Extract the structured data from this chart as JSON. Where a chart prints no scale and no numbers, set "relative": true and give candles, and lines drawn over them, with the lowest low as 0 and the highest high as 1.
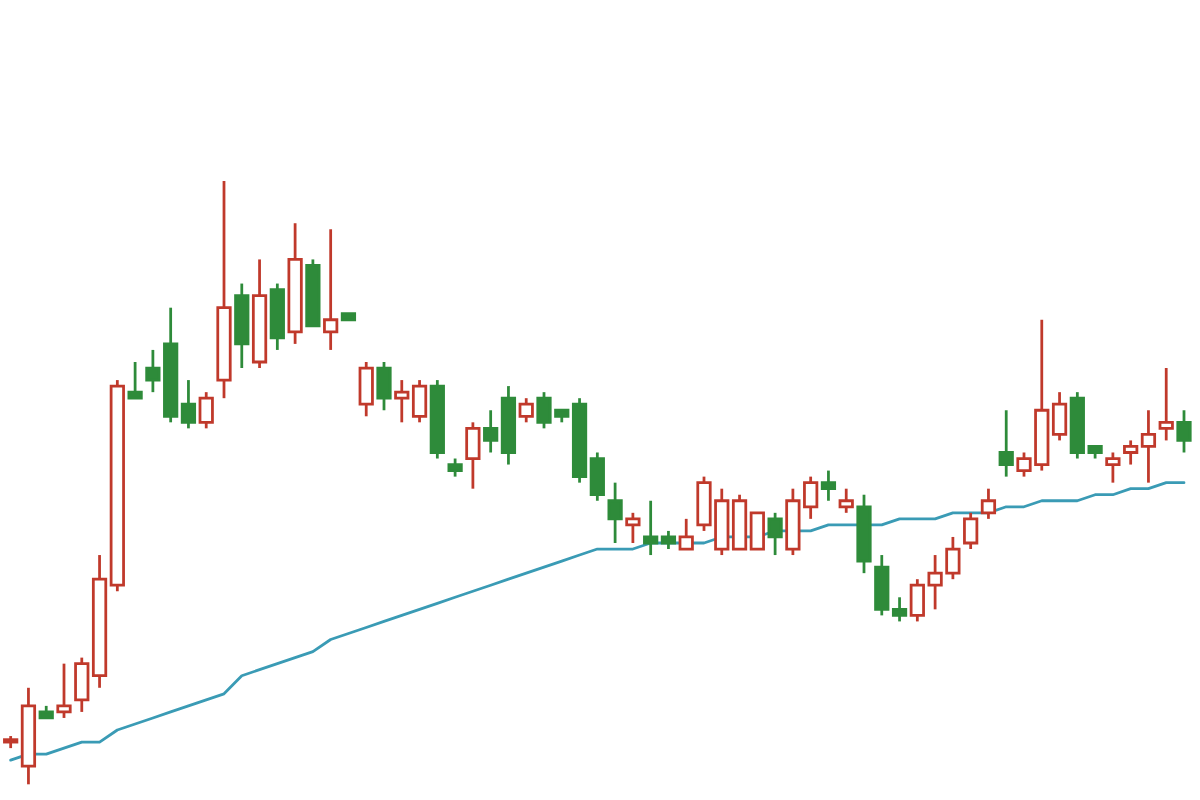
{
  "chart_data": {
    "type": "candlestick",
    "relative": true,
    "categories": [
      null,
      null,
      null,
      null,
      null,
      null,
      null,
      null,
      null,
      null,
      null,
      null,
      null,
      null,
      null,
      null,
      null,
      null,
      null,
      null,
      null,
      null,
      null,
      null,
      null,
      null,
      null,
      null,
      null,
      null,
      null,
      null,
      null,
      null,
      null,
      null,
      null,
      null,
      null,
      null,
      null,
      null,
      null,
      null,
      null,
      null,
      null,
      null,
      null,
      null,
      null,
      null,
      null,
      null,
      null,
      null,
      null,
      null,
      null,
      null,
      null,
      null,
      null,
      null,
      null,
      null,
      null
    ],
    "ohlc": [
      [
        0.07,
        0.08,
        0.06,
        0.07
      ],
      [
        0.03,
        0.16,
        0,
        0.13
      ],
      [
        0.12,
        0.13,
        0.11,
        0.11
      ],
      [
        0.12,
        0.2,
        0.11,
        0.13
      ],
      [
        0.14,
        0.21,
        0.12,
        0.2
      ],
      [
        0.18,
        0.38,
        0.16,
        0.34
      ],
      [
        0.33,
        0.67,
        0.32,
        0.66
      ],
      [
        0.65,
        0.7,
        0.64,
        0.64
      ],
      [
        0.69,
        0.72,
        0.65,
        0.67
      ],
      [
        0.73,
        0.79,
        0.6,
        0.61
      ],
      [
        0.63,
        0.67,
        0.59,
        0.6
      ],
      [
        0.6,
        0.65,
        0.59,
        0.64
      ],
      [
        0.67,
        1.0,
        0.64,
        0.79
      ],
      [
        0.81,
        0.83,
        0.69,
        0.73
      ],
      [
        0.7,
        0.87,
        0.69,
        0.81
      ],
      [
        0.82,
        0.83,
        0.72,
        0.74
      ],
      [
        0.75,
        0.93,
        0.73,
        0.87
      ],
      [
        0.86,
        0.87,
        0.76,
        0.76
      ],
      [
        0.75,
        0.92,
        0.72,
        0.77
      ],
      [
        0.78,
        0.78,
        0.77,
        0.77
      ],
      [
        0.63,
        0.7,
        0.61,
        0.69
      ],
      [
        0.69,
        0.7,
        0.62,
        0.64
      ],
      [
        0.64,
        0.67,
        0.6,
        0.65
      ],
      [
        0.61,
        0.67,
        0.6,
        0.66
      ],
      [
        0.66,
        0.67,
        0.54,
        0.55
      ],
      [
        0.53,
        0.54,
        0.51,
        0.52
      ],
      [
        0.54,
        0.6,
        0.49,
        0.59
      ],
      [
        0.59,
        0.62,
        0.55,
        0.57
      ],
      [
        0.64,
        0.66,
        0.53,
        0.55
      ],
      [
        0.61,
        0.64,
        0.6,
        0.63
      ],
      [
        0.64,
        0.65,
        0.59,
        0.6
      ],
      [
        0.62,
        0.62,
        0.6,
        0.61
      ],
      [
        0.63,
        0.64,
        0.5,
        0.51
      ],
      [
        0.54,
        0.55,
        0.47,
        0.48
      ],
      [
        0.47,
        0.5,
        0.4,
        0.44
      ],
      [
        0.43,
        0.45,
        0.4,
        0.44
      ],
      [
        0.41,
        0.47,
        0.38,
        0.4
      ],
      [
        0.41,
        0.42,
        0.39,
        0.4
      ],
      [
        0.39,
        0.44,
        0.39,
        0.41
      ],
      [
        0.43,
        0.51,
        0.42,
        0.5
      ],
      [
        0.39,
        0.49,
        0.38,
        0.47
      ],
      [
        0.39,
        0.48,
        0.39,
        0.47
      ],
      [
        0.39,
        0.45,
        0.39,
        0.45
      ],
      [
        0.44,
        0.45,
        0.38,
        0.41
      ],
      [
        0.39,
        0.49,
        0.38,
        0.47
      ],
      [
        0.46,
        0.51,
        0.44,
        0.5
      ],
      [
        0.5,
        0.52,
        0.47,
        0.49
      ],
      [
        0.46,
        0.49,
        0.45,
        0.47
      ],
      [
        0.46,
        0.48,
        0.35,
        0.37
      ],
      [
        0.36,
        0.38,
        0.28,
        0.29
      ],
      [
        0.29,
        0.31,
        0.27,
        0.28
      ],
      [
        0.28,
        0.34,
        0.27,
        0.33
      ],
      [
        0.33,
        0.38,
        0.29,
        0.35
      ],
      [
        0.35,
        0.41,
        0.34,
        0.39
      ],
      [
        0.4,
        0.45,
        0.39,
        0.44
      ],
      [
        0.45,
        0.49,
        0.44,
        0.47
      ],
      [
        0.55,
        0.62,
        0.51,
        0.53
      ],
      [
        0.52,
        0.55,
        0.51,
        0.54
      ],
      [
        0.53,
        0.77,
        0.52,
        0.62
      ],
      [
        0.58,
        0.65,
        0.57,
        0.63
      ],
      [
        0.64,
        0.65,
        0.54,
        0.55
      ],
      [
        0.56,
        0.56,
        0.54,
        0.55
      ],
      [
        0.53,
        0.55,
        0.5,
        0.54
      ],
      [
        0.55,
        0.57,
        0.53,
        0.56
      ],
      [
        0.56,
        0.62,
        0.5,
        0.58
      ],
      [
        0.59,
        0.69,
        0.57,
        0.6
      ],
      [
        0.6,
        0.62,
        0.55,
        0.57
      ]
    ],
    "series": [
      {
        "type": "line",
        "color": "#3a9bb5",
        "values": [
          0.04,
          0.05,
          0.05,
          0.06,
          0.07,
          0.07,
          0.09,
          0.1,
          0.11,
          0.12,
          0.13,
          0.14,
          0.15,
          0.18,
          0.19,
          0.2,
          0.21,
          0.22,
          0.24,
          0.25,
          0.26,
          0.27,
          0.28,
          0.29,
          0.3,
          0.31,
          0.32,
          0.33,
          0.34,
          0.35,
          0.36,
          0.37,
          0.38,
          0.39,
          0.39,
          0.39,
          0.4,
          0.4,
          0.4,
          0.4,
          0.41,
          0.41,
          0.41,
          0.42,
          0.42,
          0.42,
          0.43,
          0.43,
          0.43,
          0.43,
          0.44,
          0.44,
          0.44,
          0.45,
          0.45,
          0.45,
          0.46,
          0.46,
          0.47,
          0.47,
          0.47,
          0.48,
          0.48,
          0.49,
          0.49,
          0.5,
          0.5
        ]
      }
    ]
  }
}
